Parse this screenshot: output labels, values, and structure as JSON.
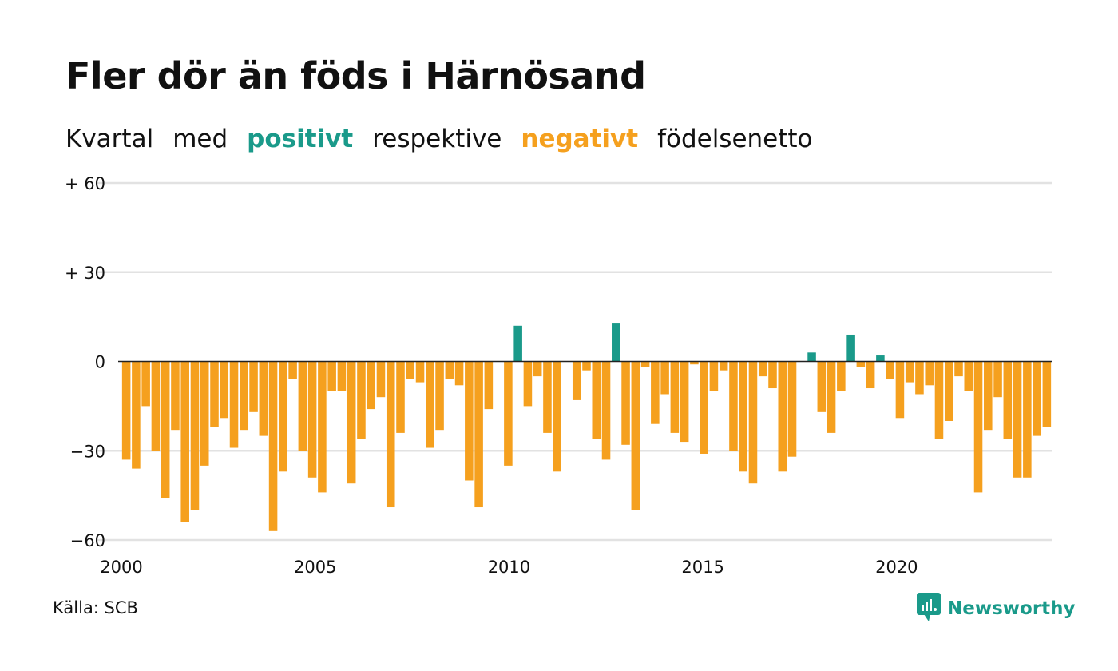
{
  "title": "Fler dör än föds i Härnösand",
  "subtitle": {
    "w1": "Kvartal",
    "w2": "med",
    "positive_word": "positivt",
    "w3": "respektive",
    "negative_word": "negativt",
    "w4": "födelsenetto"
  },
  "colors": {
    "positive": "#1a9a8a",
    "negative": "#f5a01e",
    "grid": "#e2e2e2",
    "zero": "#222222"
  },
  "source": "Källa: SCB",
  "logo": {
    "text": "Newsworthy",
    "icon": "newsworthy-chat-chart-icon"
  },
  "chart_data": {
    "type": "bar",
    "title": "Fler dör än föds i Härnösand",
    "xlabel": "",
    "ylabel": "",
    "ylim": [
      -60,
      60
    ],
    "yticks": [
      {
        "value": 60,
        "label": "+ 60"
      },
      {
        "value": 30,
        "label": "+ 30"
      },
      {
        "value": 0,
        "label": "0"
      },
      {
        "value": -30,
        "label": "−30"
      },
      {
        "value": -60,
        "label": "−60"
      }
    ],
    "x_start_year": 2000,
    "x_end_year": 2024,
    "xticks": [
      2000,
      2005,
      2010,
      2015,
      2020
    ],
    "series": [
      {
        "values": [
          -33,
          -36,
          -15,
          -30,
          -46,
          -23,
          -54,
          -50,
          -35,
          -22,
          -19,
          -29,
          -23,
          -17,
          -25,
          -57,
          -37,
          -6,
          -30,
          -39,
          -44,
          -10,
          -10,
          -41,
          -26,
          -16,
          -12,
          -49,
          -24,
          -6,
          -7,
          -29,
          -23,
          -6,
          -8,
          -40,
          -49,
          -16,
          0,
          -35,
          12,
          -15,
          -5,
          -24,
          -37,
          0,
          -13,
          -3,
          -26,
          -33,
          13,
          -28,
          -50,
          -2,
          -21,
          -11,
          -24,
          -27,
          -1,
          -31,
          -10,
          -3,
          -30,
          -37,
          -41,
          -5,
          -9,
          -37,
          -32,
          0,
          3,
          -17,
          -24,
          -10,
          9,
          -2,
          -9,
          2,
          -6,
          -19,
          -7,
          -11,
          -8,
          -26,
          -20,
          -5,
          -10,
          -44,
          -23,
          -12,
          -26,
          -39,
          -39,
          -25,
          -22
        ]
      }
    ]
  }
}
